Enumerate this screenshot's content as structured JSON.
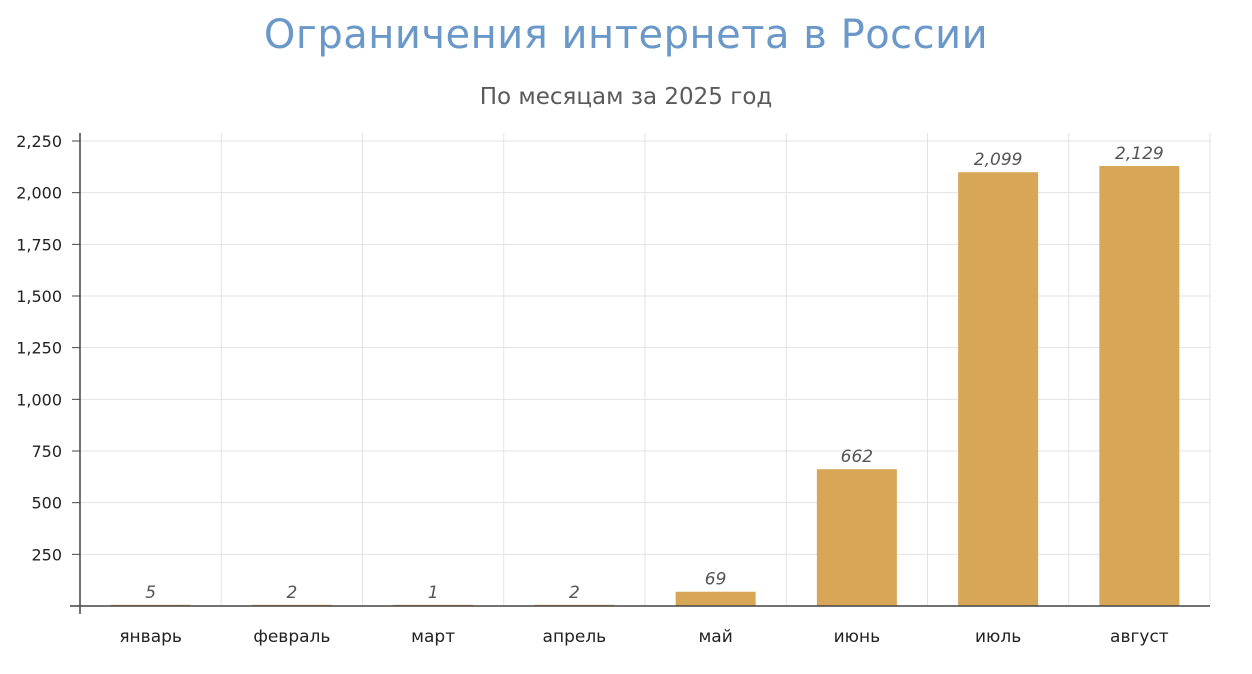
{
  "chart_data": {
    "type": "bar",
    "title": "Ограничения интернета в России",
    "subtitle": "По месяцам за 2025 год",
    "categories": [
      "январь",
      "февраль",
      "март",
      "апрель",
      "май",
      "июнь",
      "июль",
      "август"
    ],
    "values": [
      5,
      2,
      1,
      2,
      69,
      662,
      2099,
      2129
    ],
    "data_labels": [
      "5",
      "2",
      "1",
      "2",
      "69",
      "662",
      "2,099",
      "2,129"
    ],
    "yticks": [
      250,
      500,
      750,
      1000,
      1250,
      1500,
      1750,
      2000,
      2250
    ],
    "ytick_labels": [
      "250",
      "500",
      "750",
      "1,000",
      "1,250",
      "1,500",
      "1,750",
      "2,000",
      "2,250"
    ],
    "ylim": [
      0,
      2250
    ],
    "xlabel": "",
    "ylabel": "",
    "grid": true,
    "legend": "none"
  },
  "colors": {
    "bar": "#d8a657",
    "title": "#6a98c8",
    "grid": "#e3e3e3",
    "axis": "#444444"
  }
}
